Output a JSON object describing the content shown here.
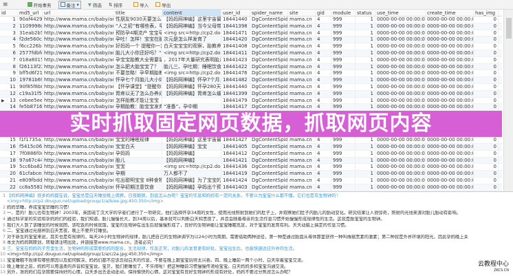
{
  "toolbar": {
    "items": [
      "开始事务",
      "备注",
      "筛选",
      "排序",
      "导入",
      "导出"
    ]
  },
  "columns": [
    "id",
    "md5_url",
    "url",
    "title",
    "content",
    "user_id",
    "spider_name",
    "site",
    "gid",
    "module",
    "status",
    "use_time",
    "create_time",
    "has_img"
  ],
  "rows": [
    [
      "1",
      "90af4429fb5",
      "http://www.mama.cn/baby/art/201405",
      "性朋友9030天要怎么预防",
      "【妈妈网神编】这里宇宙最强的",
      "18441440",
      "DgContentSpider",
      "mama.cn",
      "4",
      "999",
      "1",
      "0000-00-00 00:00:00",
      "0000-00-00 00:00:00",
      "0"
    ],
    [
      "2",
      "1109998cb7f",
      "http://www.mama.cn/baby/art/201409",
      "“人之初”有哪些表，早教",
      "【妈妈网神编】当今父母带孩子",
      "18441398",
      "DgContentSpider",
      "mama.cn",
      "4",
      "999",
      "1",
      "0000-00-00 00:00:00",
      "0000-00-00 00:00:00",
      "0"
    ],
    [
      "3",
      "31eab2b51d",
      "http://www.mama.cn/baby/art/201405",
      "预防孕4期流产 宝宝孕早期该",
      "<img src=http://cp2.douguo.net/upload",
      "18441471",
      "DgContentSpider",
      "mama.cn",
      "4",
      "999",
      "1",
      "0000-00-00 00:00:00",
      "0000-00-00 00:00:00",
      "0"
    ],
    [
      "4",
      "f2de560c5a1",
      "http://www.mama.cn/baby/art/201405",
      "孕吐！怎样！宝宝在胎教时孕宝宝",
      "次元是怎么样发育了",
      "18441420",
      "DgContentSpider",
      "mama.cn",
      "4",
      "999",
      "1",
      "0000-00-00 00:00:00",
      "0000-00-00 00:00:00",
      "0"
    ],
    [
      "5",
      "f6cc226b5c2",
      "http://www.mama.cn/baby/art/201505",
      "好妈妈一个 提醒你一定！",
      "白天宝宝宝的观察，胎教养成",
      "18441408",
      "DgContentSpider",
      "mama.cn",
      "4",
      "999",
      "1",
      "0000-00-00 00:00:00",
      "0000-00-00 00:00:00",
      "0"
    ],
    [
      "6",
      "2577fdbfcdff",
      "http://www.mama.cn/baby/art/201403",
      "胎儿大小你还好吗？“水果”",
      "<img src=http://cp2.douguo.net/upload",
      "18441411",
      "DgContentSpider",
      "mama.cn",
      "4",
      "999",
      "1",
      "0000-00-00 00:00:00",
      "0000-00-00 00:00:00",
      "0"
    ],
    [
      "7",
      "018a801581",
      "http://www.mama.cn/baby/art/201703",
      "孕宝宝胎教大全需要留护",
      "，2017年大量研究表明胎儿在子",
      "18441423",
      "DgContentSpider",
      "mama.cn",
      "4",
      "999",
      "1",
      "0000-00-00 00:00:00",
      "0000-00-00 00:00:00",
      "0"
    ],
    [
      "8",
      "f26113f224d",
      "http://www.mama.cn/baby/art/201506",
      "怎么肥大胎宝宝了？",
      "胎儿三、孕吐期：睡眠饮食，平",
      "18441422",
      "DgContentSpider",
      "mama.cn",
      "4",
      "999",
      "1",
      "0000-00-00 00:00:00",
      "0000-00-00 00:00:00",
      "0"
    ],
    [
      "9",
      "bff5d6f2128",
      "http://www.mama.cn/baby/art/201409",
      "不要忽略！孕早期胎教方法",
      "<img src=http://cp2.douguo.net/upload",
      "18441476",
      "DgContentSpider",
      "mama.cn",
      "4",
      "999",
      "1",
      "0000-00-00 00:00:00",
      "0000-00-00 00:00:00",
      "0"
    ],
    [
      "10",
      "19781b6995a",
      "http://www.mama.cn/baby/art/201404",
      "怀孕七个月胎儿大小体重",
      "【妈妈网神编】怀孕7个月，也就",
      "18441482",
      "DgContentSpider",
      "mama.cn",
      "4",
      "999",
      "1",
      "0000-00-00 00:00:00",
      "0000-00-00 00:00:00",
      "0"
    ],
    [
      "11",
      "90f85f8b8d3",
      "http://www.mama.cn/baby/art/201407",
      "【怀孕课堂】“提醒你一个”",
      "【妈妈网神编】怀孕280天，宝宝",
      "18441440",
      "DgContentSpider",
      "mama.cn",
      "4",
      "999",
      "1",
      "0000-00-00 00:00:00",
      "0000-00-00 00:00:00",
      "0"
    ],
    [
      "12",
      "c19a31f5829",
      "http://www.mama.cn/baby/art/201405",
      "胃疼以无了怎么办养成",
      "【妈妈网神编】胃疼怎么缓解",
      "18441399",
      "DgContentSpider",
      "mama.cn",
      "4",
      "999",
      "1",
      "0000-00-00 00:00:00",
      "0000-00-00 00:00:00",
      "0"
    ],
    [
      "13",
      "cebee5eea1",
      "http://www.mama.cn/baby/art/201405",
      "怎样胎教才能让宝宝",
      "",
      "18441479",
      "DgContentSpider",
      "mama.cn",
      "4",
      "999",
      "1",
      "0000-00-00 00:00:00",
      "0000-00-00 00:00:00",
      "0"
    ],
    [
      "14",
      "fe5b8716916",
      "http://www.mama.cn/baby/art/201405",
      "孕期胎教：胎宝宝发育",
      "“准备”，孕中期",
      "18441417",
      "DgContentSpider",
      "mama.cn",
      "4",
      "999",
      "1",
      "0000-00-00 00:00:00",
      "0000-00-00 00:00:00",
      "0"
    ],
    [
      "15",
      "f1f1735a11b",
      "http://www.mama.cn/baby/art/201405",
      "宝宝的睡眠规律",
      "【妈妈网神编】这里宇宙最强",
      "18441427",
      "DgContentSpider",
      "mama.cn",
      "4",
      "999",
      "1",
      "0000-00-00 00:00:00",
      "0000-00-00 00:00:00",
      "0"
    ],
    [
      "16",
      "f5415c06770",
      "http://www.mama.cn/baby/art/201407",
      "宝宝白天",
      "【妈妈网神编】宝宝",
      "18441405",
      "DgContentSpider",
      "mama.cn",
      "4",
      "999",
      "1",
      "0000-00-00 00:00:00",
      "0000-00-00 00:00:00",
      "0"
    ],
    [
      "17",
      "7f0886f0c08",
      "http://www.mama.cn/baby/art/201405",
      "孕妈妈",
      "【妈妈网神编】",
      "18441412",
      "DgContentSpider",
      "mama.cn",
      "4",
      "999",
      "1",
      "0000-00-00 00:00:00",
      "0000-00-00 00:00:00",
      "0"
    ],
    [
      "18",
      "97a67c4483",
      "http://www.mama.cn/baby/art/201405",
      "胎儿",
      "【妈妈网神编】",
      "18441421",
      "DgContentSpider",
      "mama.cn",
      "4",
      "999",
      "1",
      "0000-00-00 00:00:00",
      "0000-00-00 00:00:00",
      "0"
    ],
    [
      "19",
      "5cc6ba8208",
      "http://www.mama.cn/baby/art/201405",
      "宝宝",
      "<img src=http://cp2.douguo.net/upload",
      "18441436",
      "DgContentSpider",
      "mama.cn",
      "4",
      "999",
      "1",
      "0000-00-00 00:00:00",
      "0000-00-00 00:00:00",
      "0"
    ],
    [
      "20",
      "61cfabcea",
      "http://www.mama.cn/baby/art/201504",
      "孕期",
      "万人都不了",
      "18441419",
      "DgContentSpider",
      "mama.cn",
      "4",
      "999",
      "1",
      "0000-00-00 00:00:00",
      "0000-00-00 00:00:00",
      "0"
    ],
    [
      "21",
      "e809fbdddec",
      "http://www.mama.cn/baby/art/201412",
      "吃出聪明宝宝 8种食物",
      "【妈妈网神编】为了宝宝的聪明",
      "18441424",
      "DgContentSpider",
      "mama.cn",
      "4",
      "999",
      "1",
      "0000-00-00 00:00:00",
      "0000-00-00 00:00:00",
      "0"
    ],
    [
      "22",
      "cc8a55815e",
      "http://www.mama.cn/baby/art/201404",
      "怀孕初期注意饮食",
      "【妈妈网神编】孕妈出个预防-",
      "18441403",
      "DgContentSpider",
      "mama.cn",
      "4",
      "999",
      "1",
      "0000-00-00 00:00:00",
      "0000-00-00 00:00:00",
      "0"
    ]
  ],
  "banner": {
    "text": "实时抓取固定网页数据，抓取网页内容"
  },
  "editor": {
    "lines": [
      {
        "n": "1",
        "t": "【妈妈网神编】很多妈妈都在说，宝宝总是白天睡觉晚上闹腾，日夜颠倒，到底怎么办呢？宝宝的作息和妈妈有一定的关系，不要以为宝宝什么都不懂。它们也是有生物钟的！",
        "blue": true
      },
      {
        "n": "",
        "t": "<img>http://cp2.douguo.net/upload/group/1/a/b/ee.jpg;450;350</img>",
        "blue": true
      },
      {
        "n": "2",
        "t": "妈妈早睡，养成宝宝早睡的习惯！",
        "blue": false
      },
      {
        "n": "3",
        "t": "一、是的！胎儿也有生物钟！2003年，英国诺丁汉大学的学者们进行了一项研究，他们选择怀孕34周的女性，使用光线照射到她们的肚子上，并观察她们肚子内胎儿的胎动变化。研究结果让人很惊奇，照射的光线来源对胎儿胎动有影响。",
        "blue": false
      },
      {
        "n": "4",
        "t": "通过科学家的实验和孕妈妈们的经验，我们知道，胎儿慢慢长大，到34周以后，基本就可以判断白天和黑夜了，并且会随着母亲的生活作息习惯开始慢慢形成规律性的生活。这就是胎宝宝的生物钟。",
        "blue": false
      },
      {
        "n": "5",
        "t": "我们大人到了该睡觉的时候就困，该吃饭的时候就饿，宝宝的生物钟在出生后就慢慢形成了，良好的生物钟能让宝宝睡眠充足，对于宝宝的发育有利。天天动脑上搞定的作息习惯。",
        "blue": false
      },
      {
        "n": "6",
        "t": "二、宝宝通过光感辨别白天黑夜，晚上不要开灯睡觉。",
        "blue": false
      },
      {
        "n": "7",
        "t": "对于新生的宝宝来说，其实也是有规律的，每天24小时生物钟的规律，胎儿把自己的生物钟调节为以24小时为周期，需要借助两种途径，第一种是通过胎盘从母体那里获得一种叫做褪黑素的激素；第二种就是外界环境的阳光，因此孕妈晚上关灯睡觉，对宝宝生物钟的形成是非常有好处的。",
        "blue": false
      },
      {
        "n": "8",
        "t": "本文为妈妈网原创，转载请注明出处，并链接至www.mama.cn，违者必究！",
        "blue": false
      },
      {
        "n": "9",
        "t": "三、宝宝在妈妈的子宫里生活，生物钟的形成需要妈妈的配合，生活规律，作息正常，对胎儿的发育更有好处，宝宝出生后，也能快速适应外界的生活。",
        "blue": true
      },
      {
        "n": "10",
        "t": "<img>http://cp2.douguo.net/upload/group/1/a/c/2a.jpg;450;350</img>",
        "blue": false
      },
      {
        "n": "11",
        "t": "宝宝睡眠不规律有哪些原因以及如何解决，妈妈们都不应该忽视白天的作息，不要在晚上跟宝宝玩得太兴奋。四、晚上睡前一两个小时，白天带着宝宝交流。",
        "blue": false
      },
      {
        "n": "12",
        "t": "晚上睡觉之前，妈妈可以用温柔的声音和宝宝说，宝贝，我们要睡觉了，不许闹啦！把这种睡前习惯慢慢传递给宝宝。白天妈妈多和宝宝沟通交流。",
        "blue": false
      },
      {
        "n": "13",
        "t": "另外，准妈妈们在孕期要保持好的心情，白天多出去走动走动，保持愉快的心情，这对宝宝有良好生物钟的形成有好处，妈妈不要过分焦虑怎么办呢？",
        "blue": false
      }
    ]
  },
  "watermark": {
    "line1": "云教程中心",
    "line2": "ZKCS.CN"
  },
  "colors": {
    "banner": "#cd3ccd",
    "header_highlight": "#cfe3f6",
    "link_blue": "#3a9ad9"
  }
}
